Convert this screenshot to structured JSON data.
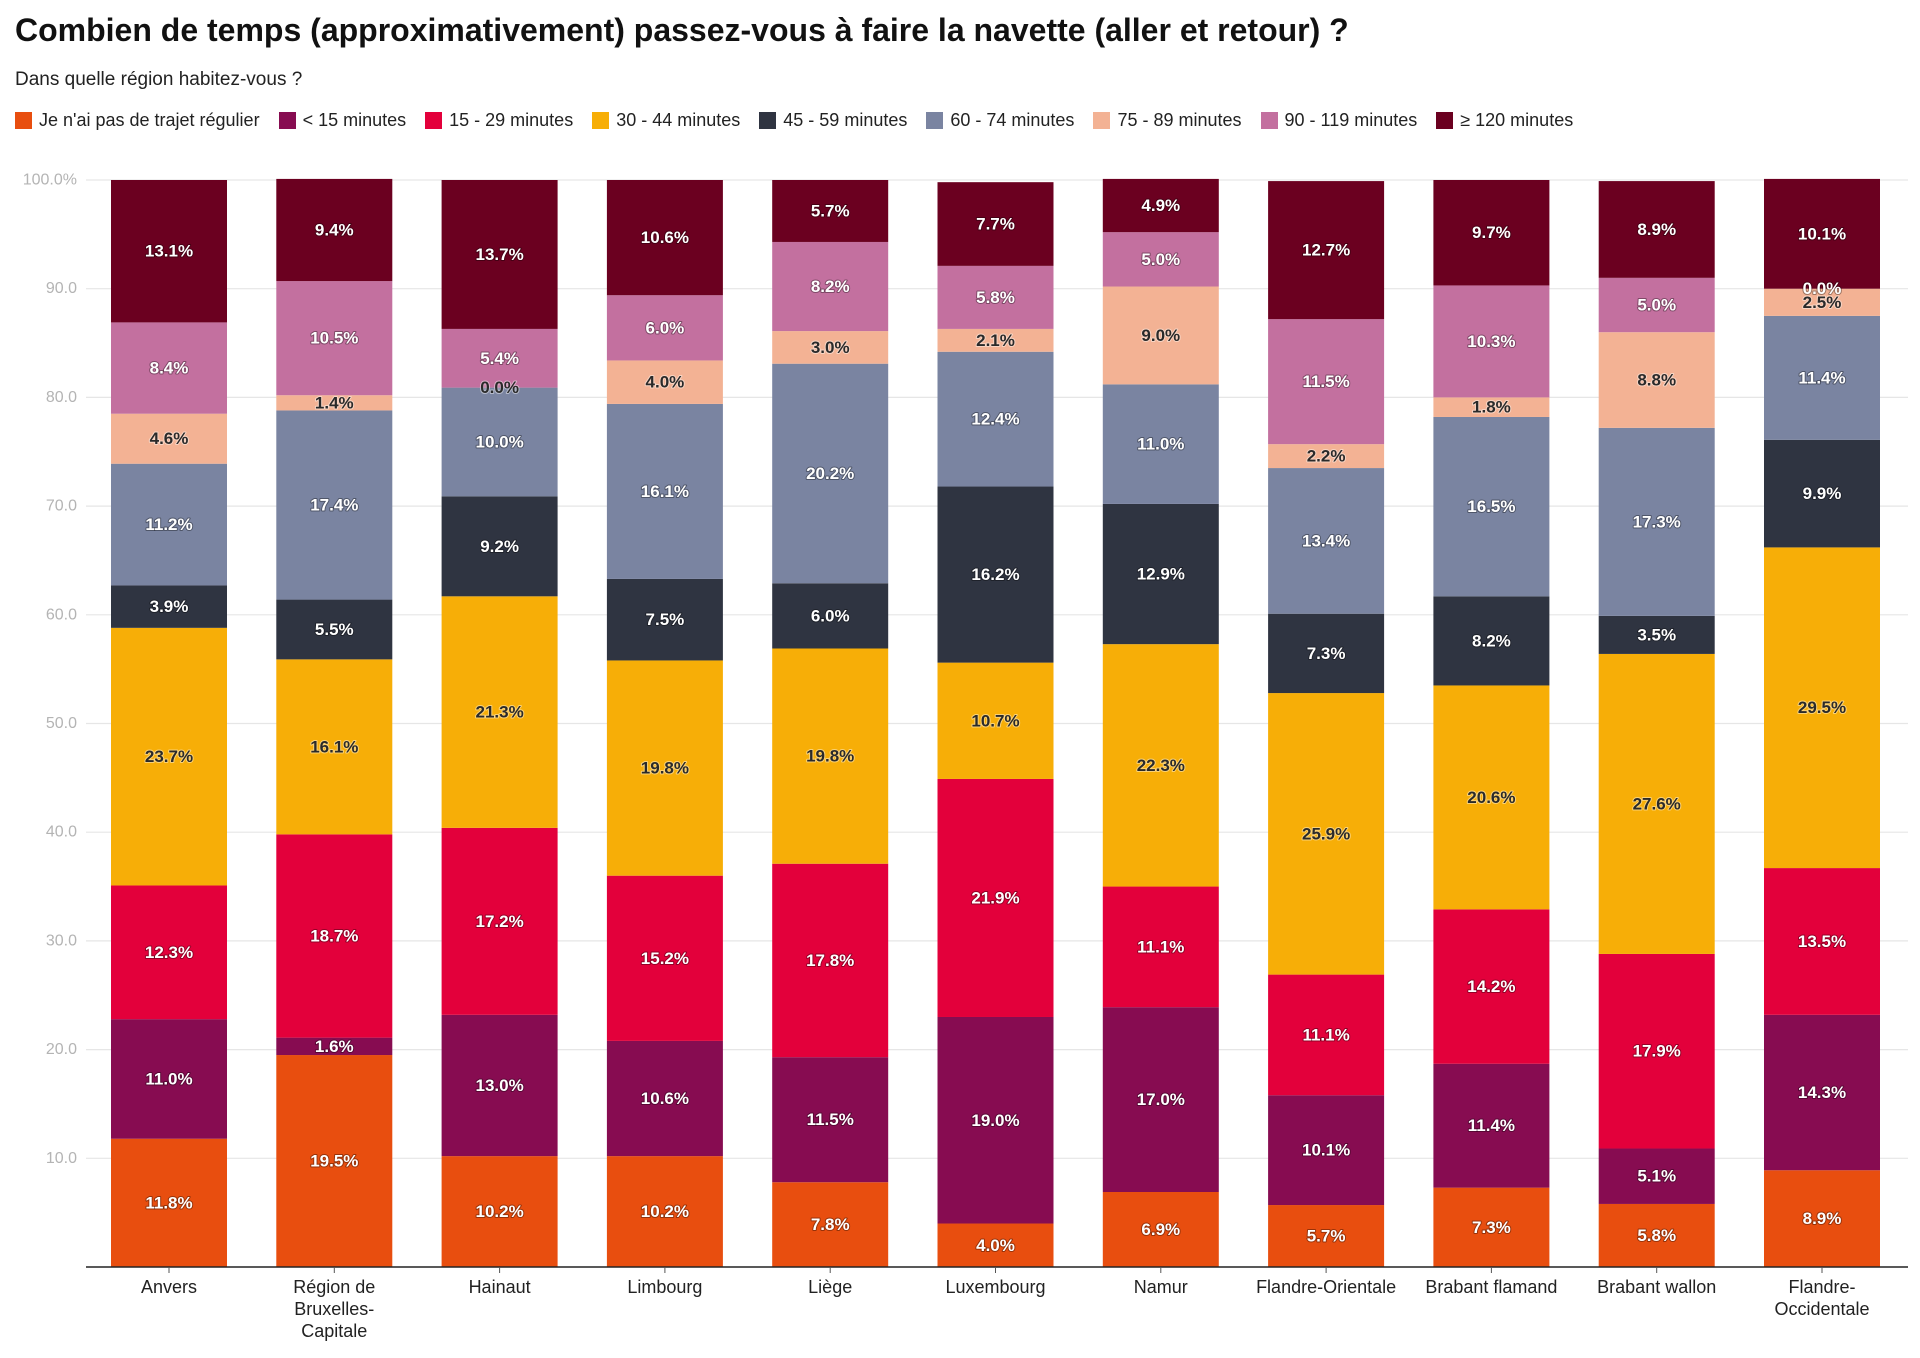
{
  "chart_data": {
    "type": "bar",
    "stacked": true,
    "title": "Combien de temps (approximativement) passez-vous à faire la navette (aller et retour) ?",
    "subtitle": "Dans quelle région habitez-vous ?",
    "legend_position": "top-left",
    "grid": true,
    "ylim": [
      0,
      100
    ],
    "yticks": [
      10,
      20,
      30,
      40,
      50,
      60,
      70,
      80,
      90,
      100
    ],
    "ytick_labels": [
      "10.0",
      "20.0",
      "30.0",
      "40.0",
      "50.0",
      "60.0",
      "70.0",
      "80.0",
      "90.0",
      "100.0%"
    ],
    "categories": [
      "Anvers",
      "Région de Bruxelles-Capitale",
      "Hainaut",
      "Limbourg",
      "Liège",
      "Luxembourg",
      "Namur",
      "Flandre-Orientale",
      "Brabant flamand",
      "Brabant wallon",
      "Flandre-Occidentale"
    ],
    "series": [
      {
        "name": "Je n'ai pas de trajet régulier",
        "color": "#E84E0F",
        "label_color": "#FFFFFF",
        "values": [
          11.8,
          19.5,
          10.2,
          10.2,
          7.8,
          4.0,
          6.9,
          5.7,
          7.3,
          5.8,
          8.9
        ]
      },
      {
        "name": "< 15 minutes",
        "color": "#870C51",
        "label_color": "#FFFFFF",
        "values": [
          11.0,
          1.6,
          13.0,
          10.6,
          11.5,
          19.0,
          17.0,
          10.1,
          11.4,
          5.1,
          14.3
        ]
      },
      {
        "name": "15 - 29 minutes",
        "color": "#E3003B",
        "label_color": "#FFFFFF",
        "values": [
          12.3,
          18.7,
          17.2,
          15.2,
          17.8,
          21.9,
          11.1,
          11.1,
          14.2,
          17.9,
          13.5
        ]
      },
      {
        "name": "30 - 44 minutes",
        "color": "#F7AE07",
        "label_color": "#2A2A2A",
        "values": [
          23.7,
          16.1,
          21.3,
          19.8,
          19.8,
          10.7,
          22.3,
          25.9,
          20.6,
          27.6,
          29.5
        ]
      },
      {
        "name": "45 - 59 minutes",
        "color": "#2F3441",
        "label_color": "#FFFFFF",
        "values": [
          3.9,
          5.5,
          9.2,
          7.5,
          6.0,
          16.2,
          12.9,
          7.3,
          8.2,
          3.5,
          9.9
        ]
      },
      {
        "name": "60 - 74 minutes",
        "color": "#7A84A1",
        "label_color": "#FFFFFF",
        "values": [
          11.2,
          17.4,
          10.0,
          16.1,
          20.2,
          12.4,
          11.0,
          13.4,
          16.5,
          17.3,
          11.4
        ]
      },
      {
        "name": "75 - 89 minutes",
        "color": "#F3B294",
        "label_color": "#2A2A2A",
        "values": [
          4.6,
          1.4,
          0.0,
          4.0,
          3.0,
          2.1,
          9.0,
          2.2,
          1.8,
          8.8,
          2.5
        ]
      },
      {
        "name": "90 - 119 minutes",
        "color": "#C3709F",
        "label_color": "#FFFFFF",
        "values": [
          8.4,
          10.5,
          5.4,
          6.0,
          8.2,
          5.8,
          5.0,
          11.5,
          10.3,
          5.0,
          0.0
        ]
      },
      {
        "name": "≥ 120 minutes",
        "color": "#6B0020",
        "label_color": "#FFFFFF",
        "values": [
          13.1,
          9.4,
          13.7,
          10.6,
          5.7,
          7.7,
          4.9,
          12.7,
          9.7,
          8.9,
          10.1
        ]
      }
    ]
  }
}
